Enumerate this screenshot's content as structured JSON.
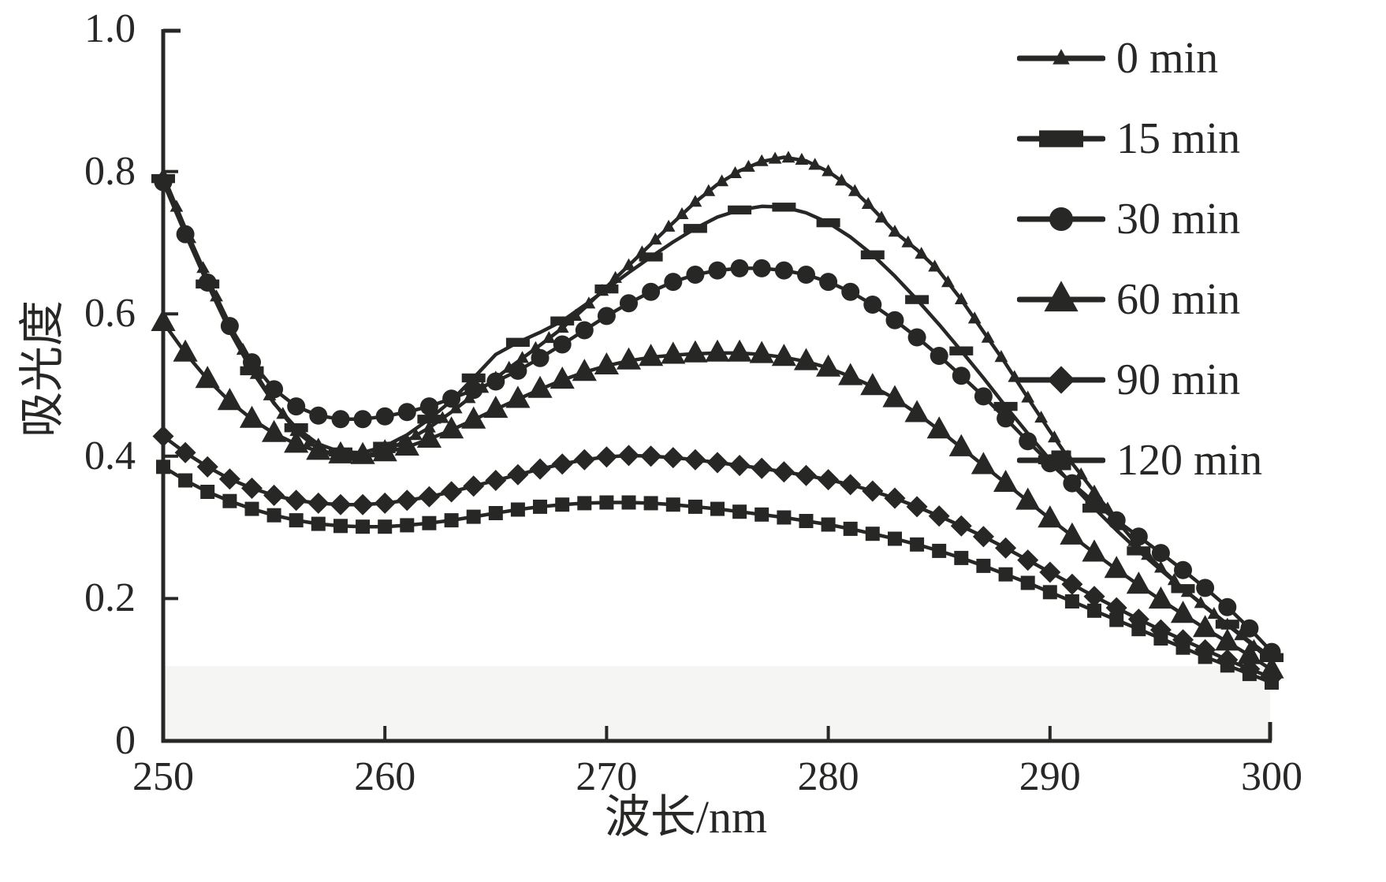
{
  "figure": {
    "background": "#ffffff",
    "ink_color": "#272725",
    "bottom_band_color": "#f5f5f3"
  },
  "axes": {
    "x": {
      "title": "波长/nm",
      "min": 250,
      "max": 300,
      "ticks": [
        250,
        260,
        270,
        280,
        290,
        300
      ],
      "tick_labels": [
        "250",
        "260",
        "270",
        "280",
        "290",
        "300"
      ]
    },
    "y": {
      "title": "吸光度",
      "min": 0,
      "max": 1.0,
      "ticks": [
        0,
        0.2,
        0.4,
        0.6,
        0.8,
        1.0
      ],
      "tick_labels": [
        "0",
        "0.2",
        "0.4",
        "0.6",
        "0.8",
        "1.0"
      ]
    }
  },
  "chart_data": {
    "type": "line",
    "title": "",
    "xlabel": "波长/nm",
    "ylabel": "吸光度",
    "xlim": [
      250,
      300
    ],
    "ylim": [
      0,
      1.0
    ],
    "grid": false,
    "legend_position": "outside-upper-right",
    "x_start": 250,
    "x_step": 1,
    "x_unit": "nm",
    "series": [
      {
        "name": "0 min",
        "marker": "triangle-small",
        "marker_size": 14,
        "marker_step": 0.6,
        "legend_marker_size": 18,
        "values": [
          0.795,
          0.72,
          0.65,
          0.585,
          0.525,
          0.475,
          0.435,
          0.41,
          0.4,
          0.4,
          0.408,
          0.422,
          0.44,
          0.462,
          0.486,
          0.51,
          0.533,
          0.556,
          0.58,
          0.608,
          0.638,
          0.668,
          0.698,
          0.728,
          0.757,
          0.782,
          0.801,
          0.814,
          0.82,
          0.815,
          0.8,
          0.778,
          0.748,
          0.715,
          0.69,
          0.66,
          0.62,
          0.575,
          0.53,
          0.482,
          0.435,
          0.39,
          0.35,
          0.31,
          0.273,
          0.243,
          0.214,
          0.188,
          0.163,
          0.138,
          0.112
        ]
      },
      {
        "name": "15 min",
        "marker": "dash-rect",
        "marker_size": 30,
        "marker_step": 2,
        "legend_marker_size": 56,
        "values": [
          0.79,
          0.713,
          0.642,
          0.576,
          0.52,
          0.474,
          0.44,
          0.417,
          0.406,
          0.405,
          0.414,
          0.43,
          0.452,
          0.478,
          0.51,
          0.543,
          0.56,
          0.574,
          0.59,
          0.612,
          0.635,
          0.658,
          0.68,
          0.701,
          0.72,
          0.736,
          0.746,
          0.751,
          0.75,
          0.742,
          0.728,
          0.708,
          0.683,
          0.653,
          0.62,
          0.585,
          0.548,
          0.51,
          0.47,
          0.432,
          0.395,
          0.36,
          0.327,
          0.296,
          0.267,
          0.24,
          0.214,
          0.189,
          0.164,
          0.14,
          0.117
        ]
      },
      {
        "name": "30 min",
        "marker": "circle",
        "marker_size": 23,
        "marker_step": 1,
        "legend_marker_size": 30,
        "values": [
          0.785,
          0.712,
          0.644,
          0.583,
          0.532,
          0.494,
          0.47,
          0.457,
          0.452,
          0.452,
          0.456,
          0.462,
          0.47,
          0.481,
          0.493,
          0.505,
          0.52,
          0.538,
          0.557,
          0.577,
          0.597,
          0.615,
          0.631,
          0.645,
          0.655,
          0.661,
          0.664,
          0.664,
          0.661,
          0.655,
          0.645,
          0.631,
          0.613,
          0.591,
          0.567,
          0.541,
          0.513,
          0.484,
          0.453,
          0.421,
          0.39,
          0.362,
          0.335,
          0.31,
          0.287,
          0.264,
          0.24,
          0.215,
          0.188,
          0.158,
          0.125
        ]
      },
      {
        "name": "60 min",
        "marker": "triangle",
        "marker_size": 26,
        "marker_step": 1,
        "legend_marker_size": 36,
        "values": [
          0.588,
          0.545,
          0.508,
          0.477,
          0.452,
          0.432,
          0.417,
          0.407,
          0.402,
          0.401,
          0.405,
          0.413,
          0.424,
          0.437,
          0.451,
          0.466,
          0.48,
          0.494,
          0.507,
          0.518,
          0.527,
          0.534,
          0.539,
          0.542,
          0.544,
          0.545,
          0.545,
          0.543,
          0.539,
          0.533,
          0.524,
          0.512,
          0.498,
          0.481,
          0.46,
          0.437,
          0.412,
          0.387,
          0.362,
          0.337,
          0.312,
          0.288,
          0.264,
          0.241,
          0.219,
          0.198,
          0.178,
          0.158,
          0.139,
          0.12,
          0.1
        ]
      },
      {
        "name": "90 min",
        "marker": "diamond",
        "marker_size": 23,
        "marker_step": 1,
        "legend_marker_size": 30,
        "values": [
          0.428,
          0.405,
          0.385,
          0.368,
          0.355,
          0.345,
          0.338,
          0.334,
          0.332,
          0.332,
          0.334,
          0.338,
          0.343,
          0.35,
          0.358,
          0.366,
          0.374,
          0.382,
          0.389,
          0.395,
          0.399,
          0.401,
          0.4,
          0.398,
          0.395,
          0.391,
          0.387,
          0.383,
          0.378,
          0.373,
          0.367,
          0.36,
          0.351,
          0.341,
          0.329,
          0.316,
          0.302,
          0.287,
          0.271,
          0.254,
          0.237,
          0.22,
          0.203,
          0.187,
          0.171,
          0.156,
          0.142,
          0.128,
          0.114,
          0.101,
          0.089
        ]
      },
      {
        "name": "120 min",
        "marker": "square",
        "marker_size": 18,
        "marker_step": 1,
        "legend_marker_size": 25,
        "values": [
          0.385,
          0.366,
          0.35,
          0.337,
          0.326,
          0.317,
          0.31,
          0.305,
          0.302,
          0.301,
          0.301,
          0.303,
          0.306,
          0.31,
          0.315,
          0.32,
          0.325,
          0.329,
          0.332,
          0.334,
          0.335,
          0.335,
          0.334,
          0.332,
          0.329,
          0.326,
          0.322,
          0.318,
          0.314,
          0.309,
          0.304,
          0.298,
          0.291,
          0.284,
          0.276,
          0.267,
          0.257,
          0.246,
          0.234,
          0.222,
          0.209,
          0.196,
          0.183,
          0.17,
          0.157,
          0.144,
          0.131,
          0.118,
          0.106,
          0.094,
          0.082
        ]
      }
    ]
  }
}
